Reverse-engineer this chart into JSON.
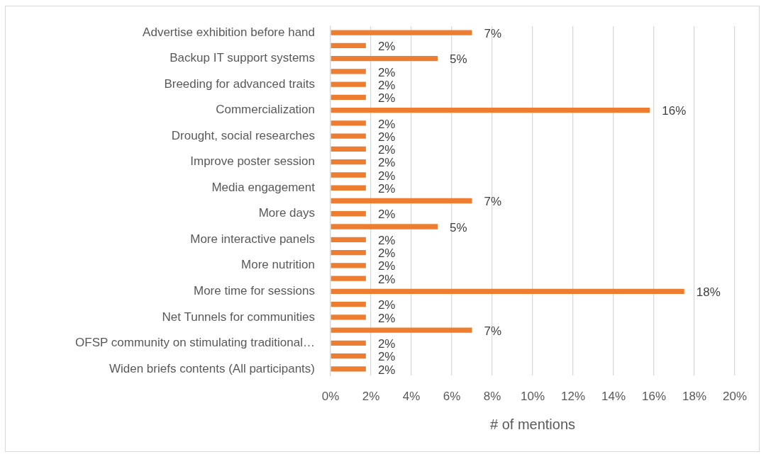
{
  "chart_data": {
    "type": "bar",
    "orientation": "horizontal",
    "xlabel": "# of mentions",
    "categories": [
      "Advertise exhibition before hand",
      null,
      "Backup IT support systems",
      null,
      "Breeding for advanced traits",
      null,
      "Commercialization",
      null,
      "Drought, social researches",
      null,
      "Improve poster session",
      null,
      "Media engagement",
      null,
      "More days",
      null,
      "More interactive panels",
      null,
      "More nutrition",
      null,
      "More time for sessions",
      null,
      "Net Tunnels for communities",
      null,
      "OFSP community on stimulating traditional…",
      null,
      "Widen briefs contents (All participants)"
    ],
    "values": [
      7.0,
      1.75,
      5.3,
      1.75,
      1.75,
      1.75,
      15.8,
      1.75,
      1.75,
      1.75,
      1.75,
      1.75,
      1.75,
      7.0,
      1.75,
      5.3,
      1.75,
      1.75,
      1.75,
      1.75,
      17.5,
      1.75,
      1.75,
      7.0,
      1.75,
      1.75,
      1.75
    ],
    "value_labels": [
      "7%",
      "2%",
      "5%",
      "2%",
      "2%",
      "2%",
      "16%",
      "2%",
      "2%",
      "2%",
      "2%",
      "2%",
      "2%",
      "7%",
      "2%",
      "5%",
      "2%",
      "2%",
      "2%",
      "2%",
      "18%",
      "2%",
      "2%",
      "7%",
      "2%",
      "2%",
      "2%"
    ],
    "color": "#ed7d31",
    "xlim": [
      0,
      20
    ],
    "xticks": [
      {
        "value": 0,
        "label": "0%"
      },
      {
        "value": 2,
        "label": "2%"
      },
      {
        "value": 4,
        "label": "4%"
      },
      {
        "value": 6,
        "label": "6%"
      },
      {
        "value": 8,
        "label": "8%"
      },
      {
        "value": 10,
        "label": "10%"
      },
      {
        "value": 12,
        "label": "12%"
      },
      {
        "value": 14,
        "label": "14%"
      },
      {
        "value": 16,
        "label": "16%"
      },
      {
        "value": 18,
        "label": "18%"
      },
      {
        "value": 20,
        "label": "20%"
      }
    ],
    "grid": "x"
  }
}
